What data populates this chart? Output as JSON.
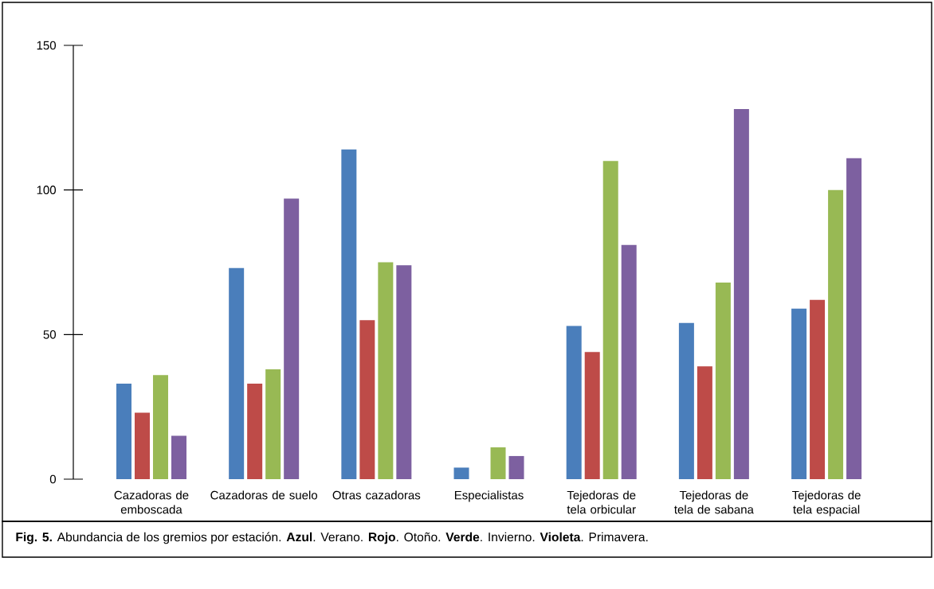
{
  "chart_data": {
    "type": "bar",
    "categories": [
      "Cazadoras de emboscada",
      "Cazadoras de suelo",
      "Otras cazadoras",
      "Especialistas",
      "Tejedoras de tela orbicular",
      "Tejedoras de tela de sabana",
      "Tejedoras de tela espacial"
    ],
    "series": [
      {
        "color": "#4a7ebb",
        "values": [
          33,
          73,
          114,
          4,
          53,
          54,
          59
        ]
      },
      {
        "color": "#be4b48",
        "values": [
          23,
          33,
          55,
          0,
          44,
          39,
          62
        ]
      },
      {
        "color": "#98b954",
        "values": [
          36,
          38,
          75,
          11,
          110,
          68,
          100
        ]
      },
      {
        "color": "#7d60a0",
        "values": [
          15,
          97,
          74,
          8,
          81,
          128,
          111
        ]
      }
    ],
    "ylim": [
      0,
      150
    ],
    "yticks": [
      0,
      50,
      100,
      150
    ],
    "grid": false,
    "annotations": [
      "**Fig. 5.** Abundancia de los gremios por estación. **Azul**. Verano. **Rojo**. Otoño. **Verde**. Invierno. **Violeta**. Primavera."
    ]
  }
}
